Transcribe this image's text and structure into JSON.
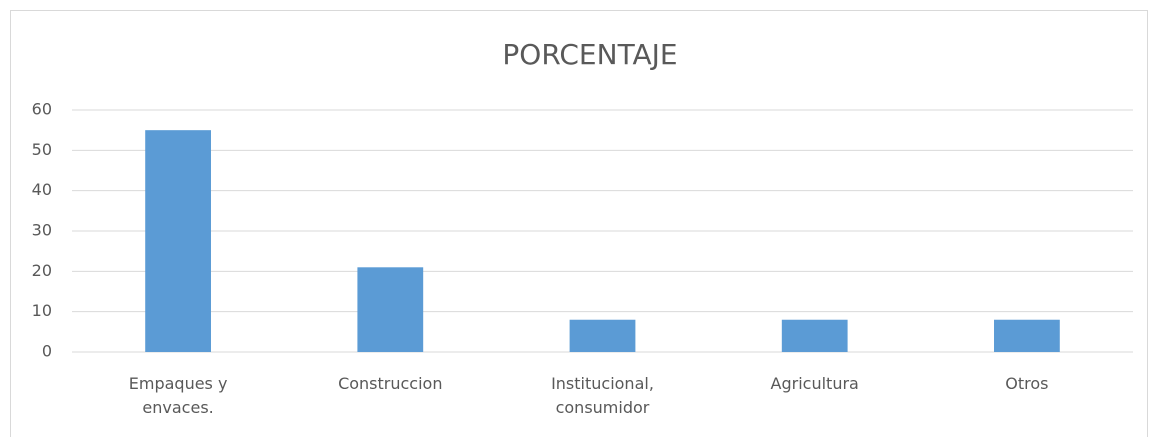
{
  "chart_data": {
    "type": "bar",
    "title": "PORCENTAJE",
    "categories": [
      "Empaques y envaces.",
      "Construccion",
      "Institucional, consumidor",
      "Agricultura",
      "Otros"
    ],
    "values": [
      55,
      21,
      8,
      8,
      8
    ],
    "color": "#5b9bd5",
    "ylim": [
      0,
      60
    ],
    "yticks": [
      0,
      10,
      20,
      30,
      40,
      50,
      60
    ],
    "grid": true
  }
}
